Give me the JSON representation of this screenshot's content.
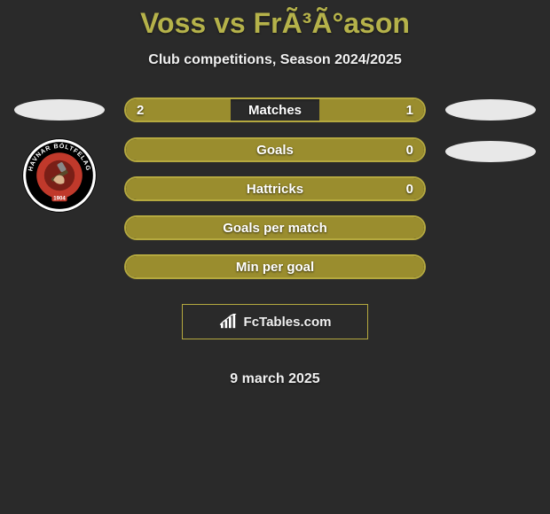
{
  "title": "Voss vs FrÃ³Ã°ason",
  "subtitle": "Club competitions, Season 2024/2025",
  "date": "9 march 2025",
  "branding": {
    "text": "FcTables.com"
  },
  "colors": {
    "accent": "#b5b24a",
    "bar_border": "#b5a93f",
    "bar_fill": "#9a8d2e",
    "background": "#2a2a2a",
    "ellipse": "#e8e8e8",
    "text": "#f0f0f0"
  },
  "stats": [
    {
      "label": "Matches",
      "left_val": "2",
      "right_val": "1",
      "left_fill_pct": 35,
      "right_fill_pct": 35,
      "show_left_val": true,
      "show_right_val": true
    },
    {
      "label": "Goals",
      "left_val": "",
      "right_val": "0",
      "left_fill_pct": 100,
      "right_fill_pct": 0,
      "show_left_val": false,
      "show_right_val": true
    },
    {
      "label": "Hattricks",
      "left_val": "",
      "right_val": "0",
      "left_fill_pct": 100,
      "right_fill_pct": 0,
      "show_left_val": false,
      "show_right_val": true
    },
    {
      "label": "Goals per match",
      "left_val": "",
      "right_val": "",
      "left_fill_pct": 100,
      "right_fill_pct": 0,
      "show_left_val": false,
      "show_right_val": false
    },
    {
      "label": "Min per goal",
      "left_val": "",
      "right_val": "",
      "left_fill_pct": 100,
      "right_fill_pct": 0,
      "show_left_val": false,
      "show_right_val": false
    }
  ],
  "left_player": {
    "badge_outer": "#ffffff",
    "badge_ring": "#000000",
    "badge_inner": "#c0392b",
    "badge_ring_text_color": "#ffffff",
    "badge_ring_text": "HAVNAR BÓLTFELAG",
    "badge_year": "1904"
  }
}
